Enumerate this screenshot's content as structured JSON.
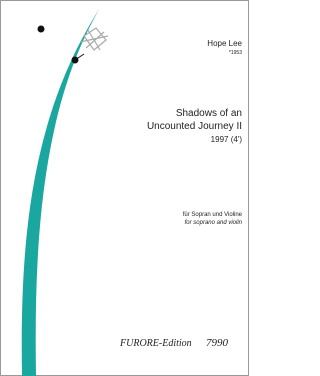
{
  "composer": {
    "name": "Hope Lee",
    "born": "*1953"
  },
  "work": {
    "title_lines": [
      "Shadows of an",
      "Uncounted Journey II"
    ],
    "date": "1997 (4')"
  },
  "scoring": {
    "german": "für Sopran und Violine",
    "english": "for soprano and violin"
  },
  "publisher": {
    "name": "FURORE-Edition",
    "number": "7990"
  }
}
